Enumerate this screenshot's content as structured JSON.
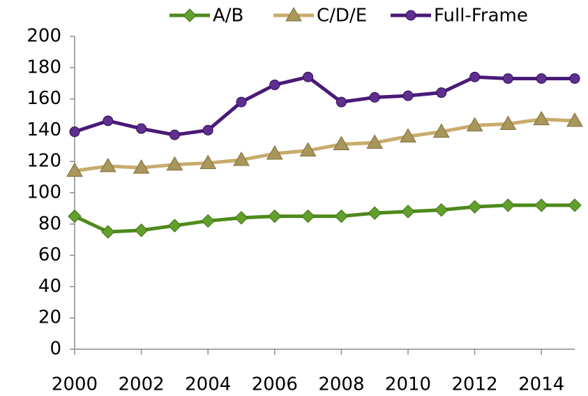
{
  "chart_data": {
    "type": "line",
    "x": [
      2000,
      2001,
      2002,
      2003,
      2004,
      2005,
      2006,
      2007,
      2008,
      2009,
      2010,
      2011,
      2012,
      2013,
      2014,
      2015
    ],
    "series": [
      {
        "name": "A/B",
        "color": "#4e8a1c",
        "marker": "diamond",
        "values": [
          85,
          75,
          76,
          79,
          82,
          84,
          85,
          85,
          85,
          87,
          88,
          89,
          91,
          92,
          92,
          92
        ]
      },
      {
        "name": "C/D/E",
        "color": "#c8ab6c",
        "marker": "triangle",
        "values": [
          114,
          117,
          116,
          118,
          119,
          121,
          125,
          127,
          131,
          132,
          136,
          139,
          143,
          144,
          147,
          146
        ]
      },
      {
        "name": "Full-Frame",
        "color": "#4a1a78",
        "marker": "circle",
        "values": [
          139,
          146,
          141,
          137,
          140,
          158,
          169,
          174,
          158,
          161,
          162,
          164,
          174,
          173,
          173,
          173
        ]
      }
    ],
    "xlim": [
      2000,
      2015
    ],
    "xticks": [
      2000,
      2002,
      2004,
      2006,
      2008,
      2010,
      2012,
      2014
    ],
    "ylim": [
      0,
      200
    ],
    "yticks": [
      0,
      20,
      40,
      60,
      80,
      100,
      120,
      140,
      160,
      180,
      200
    ],
    "grid": false,
    "legend": "top"
  }
}
